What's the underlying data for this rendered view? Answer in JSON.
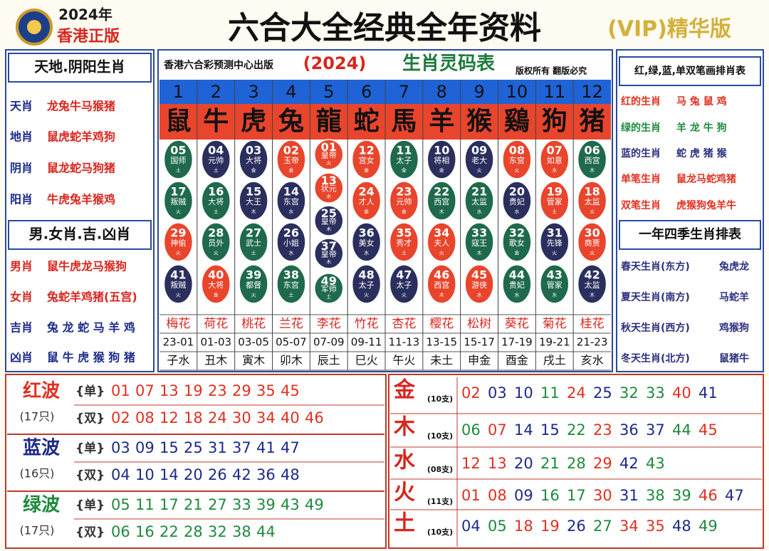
{
  "header": {
    "year": "2024年",
    "edition": "香港正版",
    "title": "六合大全经典全年资料",
    "vip": "(VIP)精华版"
  },
  "left_panel": {
    "sections": [
      {
        "title": "天地.阴阳生肖",
        "rows": [
          {
            "label": "天肖",
            "value": "龙兔牛马猴猪"
          },
          {
            "label": "地肖",
            "value": "鼠虎蛇羊鸡狗"
          },
          {
            "label": "阴肖",
            "value": "鼠龙蛇马狗猪"
          },
          {
            "label": "阳肖",
            "value": "牛虎兔羊猴鸡"
          }
        ]
      },
      {
        "title": "男.女肖.吉.凶肖",
        "rows": [
          {
            "label": "男肖",
            "value": "鼠牛虎龙马猴狗"
          },
          {
            "label": "女肖",
            "value": "兔蛇羊鸡猪(五宫)"
          },
          {
            "label": "吉肖",
            "value": "兔 龙 蛇 马 羊 鸡"
          },
          {
            "label": "凶肖",
            "value": "鼠 牛 虎 猴 狗 猪"
          }
        ]
      }
    ]
  },
  "table": {
    "publisher": "香港六合彩预测中心出版",
    "year": "(2024)",
    "title": "生肖灵码表",
    "rights": "版权所有 翻版必究",
    "columns": [
      {
        "number": "1",
        "zodiac": "鼠",
        "balls": [
          {
            "num": "05",
            "name": "国师",
            "element": "土",
            "color": "#1f6a4c"
          },
          {
            "num": "17",
            "name": "叛贼",
            "element": "火",
            "color": "#1f6a4c"
          },
          {
            "num": "29",
            "name": "神偷",
            "element": "火",
            "color": "#e8452c"
          },
          {
            "num": "41",
            "name": "叛贼",
            "element": "火",
            "color": "#2b2f5e"
          }
        ],
        "flower": "梅花",
        "hours": "23-01",
        "branch": "子水"
      },
      {
        "number": "2",
        "zodiac": "牛",
        "balls": [
          {
            "num": "04",
            "name": "元帅",
            "element": "土",
            "color": "#2b2f5e"
          },
          {
            "num": "16",
            "name": "大将",
            "element": "土",
            "color": "#1f6a4c"
          },
          {
            "num": "28",
            "name": "员外",
            "element": "火",
            "color": "#1f6a4c"
          },
          {
            "num": "40",
            "name": "大将",
            "element": "金",
            "color": "#e8452c"
          }
        ],
        "flower": "荷花",
        "hours": "01-03",
        "branch": "丑木"
      },
      {
        "number": "3",
        "zodiac": "虎",
        "balls": [
          {
            "num": "03",
            "name": "大将",
            "element": "金",
            "color": "#2b2f5e"
          },
          {
            "num": "15",
            "name": "大王",
            "element": "木",
            "color": "#2b2f5e"
          },
          {
            "num": "27",
            "name": "武士",
            "element": "土",
            "color": "#1f6a4c"
          },
          {
            "num": "39",
            "name": "都督",
            "element": "火",
            "color": "#1f6a4c"
          }
        ],
        "flower": "桃花",
        "hours": "03-05",
        "branch": "寅木"
      },
      {
        "number": "4",
        "zodiac": "兔",
        "balls": [
          {
            "num": "02",
            "name": "玉帝",
            "element": "金",
            "color": "#e8452c"
          },
          {
            "num": "14",
            "name": "东宫",
            "element": "水",
            "color": "#2b2f5e"
          },
          {
            "num": "26",
            "name": "小姐",
            "element": "水",
            "color": "#2b2f5e"
          },
          {
            "num": "38",
            "name": "东宫",
            "element": "土",
            "color": "#1f6a4c"
          }
        ],
        "flower": "兰花",
        "hours": "05-07",
        "branch": "卯木"
      },
      {
        "number": "5",
        "zodiac": "龍",
        "balls": [
          {
            "num": "01",
            "name": "皇帝",
            "element": "火",
            "color": "#e8452c"
          },
          {
            "num": "13",
            "name": "状元",
            "element": "水",
            "color": "#e8452c"
          },
          {
            "num": "25",
            "name": "皇帝",
            "element": "木",
            "color": "#2b2f5e"
          },
          {
            "num": "37",
            "name": "皇帝",
            "element": "木",
            "color": "#2b2f5e"
          },
          {
            "num": "49",
            "name": "军师",
            "element": "土",
            "color": "#1f6a4c"
          }
        ],
        "flower": "李花",
        "hours": "07-09",
        "branch": "辰土"
      },
      {
        "number": "6",
        "zodiac": "蛇",
        "balls": [
          {
            "num": "12",
            "name": "宫女",
            "element": "金",
            "color": "#e8452c"
          },
          {
            "num": "24",
            "name": "才人",
            "element": "金",
            "color": "#e8452c"
          },
          {
            "num": "36",
            "name": "美女",
            "element": "水",
            "color": "#2b2f5e"
          },
          {
            "num": "48",
            "name": "太子",
            "element": "火",
            "color": "#2b2f5e"
          }
        ],
        "flower": "竹花",
        "hours": "09-11",
        "branch": "巳火"
      },
      {
        "number": "7",
        "zodiac": "馬",
        "balls": [
          {
            "num": "11",
            "name": "太子",
            "element": "金",
            "color": "#1f6a4c"
          },
          {
            "num": "23",
            "name": "元帅",
            "element": "金",
            "color": "#e8452c"
          },
          {
            "num": "35",
            "name": "秀才",
            "element": "土",
            "color": "#e8452c"
          },
          {
            "num": "47",
            "name": "太子",
            "element": "火",
            "color": "#2b2f5e"
          }
        ],
        "flower": "杏花",
        "hours": "11-13",
        "branch": "午火"
      },
      {
        "number": "8",
        "zodiac": "羊",
        "balls": [
          {
            "num": "10",
            "name": "将相",
            "element": "金",
            "color": "#2b2f5e"
          },
          {
            "num": "22",
            "name": "西宫",
            "element": "木",
            "color": "#1f6a4c"
          },
          {
            "num": "34",
            "name": "夫人",
            "element": "火",
            "color": "#e8452c"
          },
          {
            "num": "46",
            "name": "西宫",
            "element": "木",
            "color": "#e8452c"
          }
        ],
        "flower": "樱花",
        "hours": "13-15",
        "branch": "未土"
      },
      {
        "number": "9",
        "zodiac": "猴",
        "balls": [
          {
            "num": "09",
            "name": "老大",
            "element": "火",
            "color": "#2b2f5e"
          },
          {
            "num": "21",
            "name": "太监",
            "element": "水",
            "color": "#1f6a4c"
          },
          {
            "num": "33",
            "name": "寇王",
            "element": "木",
            "color": "#1f6a4c"
          },
          {
            "num": "45",
            "name": "游侠",
            "element": "水",
            "color": "#e8452c"
          }
        ],
        "flower": "松树",
        "hours": "15-17",
        "branch": "申金"
      },
      {
        "number": "10",
        "zodiac": "鷄",
        "balls": [
          {
            "num": "08",
            "name": "东宫",
            "element": "火",
            "color": "#e8452c"
          },
          {
            "num": "20",
            "name": "贵妃",
            "element": "水",
            "color": "#2b2f5e"
          },
          {
            "num": "32",
            "name": "歌女",
            "element": "金",
            "color": "#1f6a4c"
          },
          {
            "num": "44",
            "name": "贵妃",
            "element": "水",
            "color": "#1f6a4c"
          }
        ],
        "flower": "葵花",
        "hours": "17-19",
        "branch": "酉金"
      },
      {
        "number": "11",
        "zodiac": "狗",
        "balls": [
          {
            "num": "07",
            "name": "如意",
            "element": "木",
            "color": "#e8452c"
          },
          {
            "num": "19",
            "name": "管家",
            "element": "土",
            "color": "#e8452c"
          },
          {
            "num": "31",
            "name": "先锋",
            "element": "火",
            "color": "#2b2f5e"
          },
          {
            "num": "43",
            "name": "管家",
            "element": "水",
            "color": "#1f6a4c"
          }
        ],
        "flower": "菊花",
        "hours": "19-21",
        "branch": "戌土"
      },
      {
        "number": "12",
        "zodiac": "猪",
        "balls": [
          {
            "num": "06",
            "name": "西宫",
            "element": "木",
            "color": "#1f6a4c"
          },
          {
            "num": "18",
            "name": "太监",
            "element": "火",
            "color": "#e8452c"
          },
          {
            "num": "30",
            "name": "商贾",
            "element": "火",
            "color": "#e8452c"
          },
          {
            "num": "42",
            "name": "太监",
            "element": "木",
            "color": "#2b2f5e"
          }
        ],
        "flower": "桂花",
        "hours": "21-23",
        "branch": "亥水"
      }
    ]
  },
  "right_panel": {
    "sections": [
      {
        "title": "红,绿,蓝,单双笔画排肖表",
        "rows": [
          {
            "label": "红的生肖",
            "value": "马 兔 鼠 鸡",
            "color": "#e03020"
          },
          {
            "label": "绿的生肖",
            "value": "羊 龙 牛 狗",
            "color": "#1f8a3c"
          },
          {
            "label": "蓝的生肖",
            "value": "蛇 虎 猪 猴",
            "color": "#2b2f7e"
          },
          {
            "label": "单笔生肖",
            "value": "鼠龙马蛇鸡猪",
            "color": "#e03020"
          },
          {
            "label": "双笔生肖",
            "value": "虎猴狗兔羊牛",
            "color": "#e03020"
          }
        ]
      },
      {
        "title": "一年四季生肖排表",
        "rows": [
          {
            "label": "春天生肖(东方)",
            "value": "兔虎龙",
            "color": "#2b2f7e"
          },
          {
            "label": "夏天生肖(南方)",
            "value": "马蛇羊",
            "color": "#2b2f7e"
          },
          {
            "label": "秋天生肖(西方)",
            "value": "鸡猴狗",
            "color": "#2b2f7e"
          },
          {
            "label": "冬天生肖(北方)",
            "value": "鼠猪牛",
            "color": "#2b2f7e"
          }
        ]
      }
    ]
  },
  "waves": [
    {
      "name": "红波",
      "count": "(17只)",
      "color": "#e03020",
      "rows": [
        {
          "tag": "{单}",
          "numbers": [
            "01",
            "07",
            "13",
            "19",
            "23",
            "29",
            "35",
            "45"
          ]
        },
        {
          "tag": "{双}",
          "numbers": [
            "02",
            "08",
            "12",
            "18",
            "24",
            "30",
            "34",
            "40",
            "46"
          ]
        }
      ]
    },
    {
      "name": "蓝波",
      "count": "(16只)",
      "color": "#1c2a8a",
      "rows": [
        {
          "tag": "{单}",
          "numbers": [
            "03",
            "09",
            "15",
            "25",
            "31",
            "37",
            "41",
            "47"
          ]
        },
        {
          "tag": "{双}",
          "numbers": [
            "04",
            "10",
            "14",
            "20",
            "26",
            "42",
            "36",
            "48"
          ]
        }
      ]
    },
    {
      "name": "绿波",
      "count": "(17只)",
      "color": "#1f8a3c",
      "rows": [
        {
          "tag": "{单}",
          "numbers": [
            "05",
            "11",
            "17",
            "21",
            "27",
            "33",
            "39",
            "43",
            "49"
          ]
        },
        {
          "tag": "{双}",
          "numbers": [
            "06",
            "16",
            "22",
            "28",
            "32",
            "38",
            "44"
          ]
        }
      ]
    }
  ],
  "elements": [
    {
      "name": "金",
      "count": "(10支)",
      "numbers": [
        "02",
        "03",
        "10",
        "11",
        "24",
        "25",
        "32",
        "33",
        "40",
        "41"
      ]
    },
    {
      "name": "木",
      "count": "(10支)",
      "numbers": [
        "06",
        "07",
        "14",
        "15",
        "22",
        "23",
        "36",
        "37",
        "44",
        "45"
      ]
    },
    {
      "name": "水",
      "count": "(08支)",
      "numbers": [
        "12",
        "13",
        "20",
        "21",
        "28",
        "29",
        "42",
        "43"
      ]
    },
    {
      "name": "火",
      "count": "(11支)",
      "numbers": [
        "01",
        "08",
        "09",
        "16",
        "17",
        "30",
        "31",
        "38",
        "39",
        "46",
        "47"
      ]
    },
    {
      "name": "土",
      "count": "(10支)",
      "numbers": [
        "04",
        "05",
        "18",
        "19",
        "26",
        "27",
        "34",
        "35",
        "48",
        "49"
      ]
    }
  ]
}
